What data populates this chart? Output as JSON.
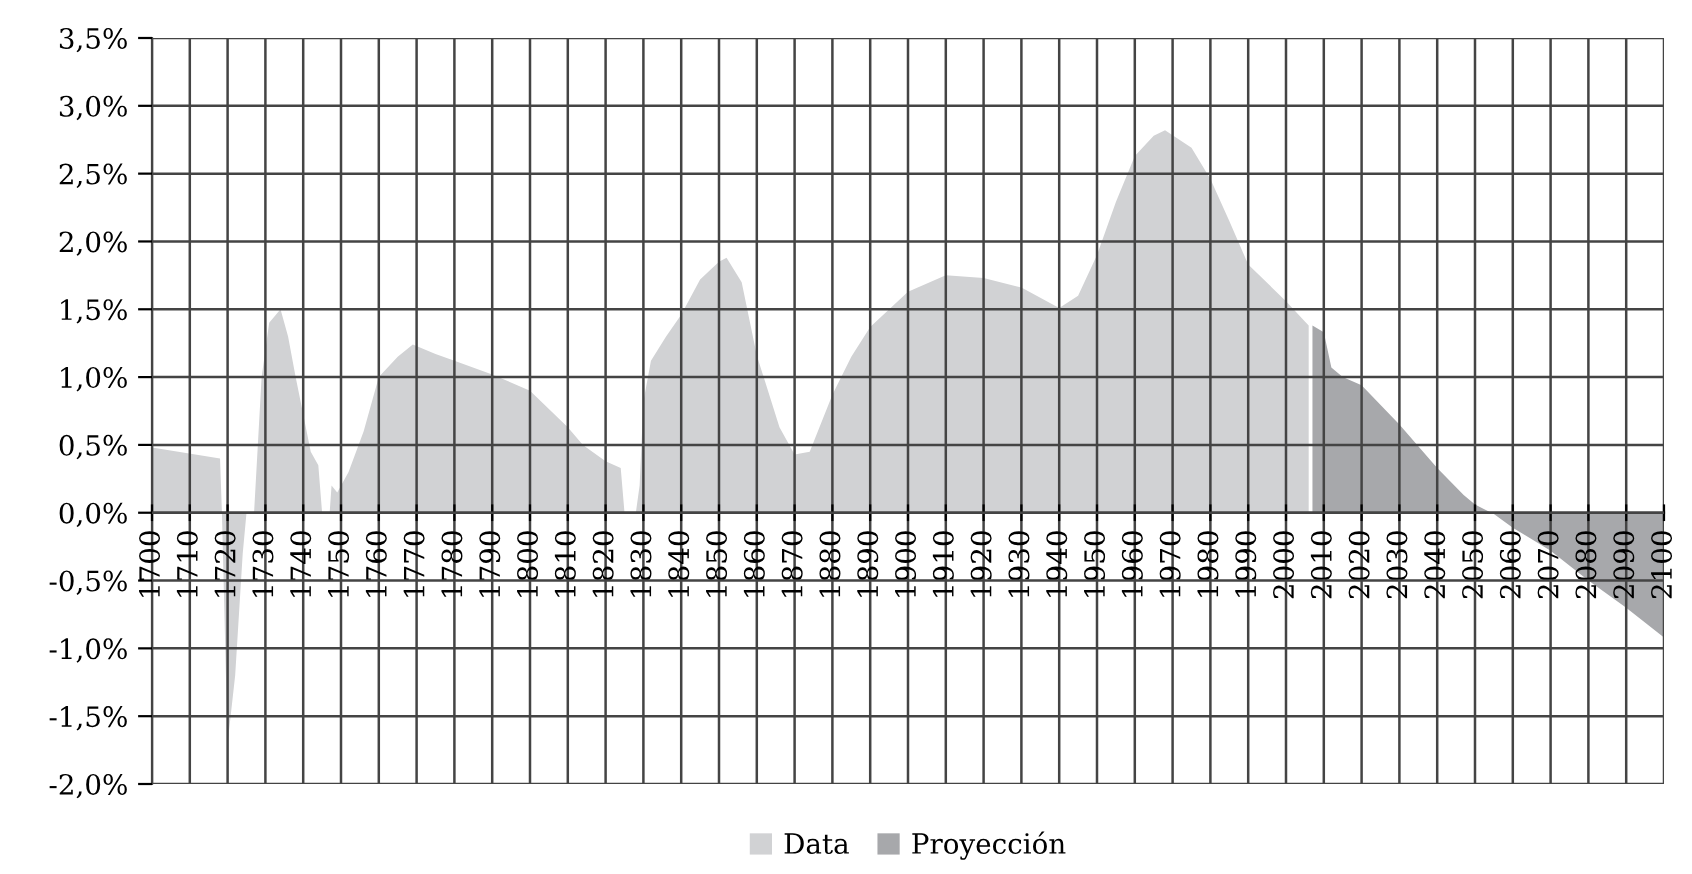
{
  "chart_data": {
    "type": "area",
    "xlim": [
      1700,
      2100
    ],
    "xticks": [
      1700,
      1710,
      1720,
      1730,
      1740,
      1750,
      1760,
      1770,
      1780,
      1790,
      1800,
      1810,
      1820,
      1830,
      1840,
      1850,
      1860,
      1870,
      1880,
      1890,
      1900,
      1910,
      1920,
      1930,
      1940,
      1950,
      1960,
      1970,
      1980,
      1990,
      2000,
      2010,
      2020,
      2030,
      2040,
      2050,
      2060,
      2070,
      2080,
      2090,
      2100
    ],
    "ylim": [
      -2.0,
      3.5
    ],
    "yticks": [
      {
        "value": -2.0,
        "label": "-2,0%"
      },
      {
        "value": -1.5,
        "label": "-1,5%"
      },
      {
        "value": -1.0,
        "label": "-1,0%"
      },
      {
        "value": -0.5,
        "label": "-0,5%"
      },
      {
        "value": 0,
        "label": "0,0%"
      },
      {
        "value": 0.5,
        "label": "0,5%"
      },
      {
        "value": 1.0,
        "label": "1,0%"
      },
      {
        "value": 1.5,
        "label": "1,5%"
      },
      {
        "value": 2.0,
        "label": "2,0%"
      },
      {
        "value": 2.5,
        "label": "2,5%"
      },
      {
        "value": 3.0,
        "label": "3,0%"
      },
      {
        "value": 3.5,
        "label": "3,5%"
      }
    ],
    "grid": true,
    "legend": "bottom",
    "series": [
      {
        "name": "Data",
        "color": "#d1d2d4",
        "x": [
          1700,
          1718,
          1718.5,
          1720,
          1722,
          1724,
          1725,
          1726,
          1727,
          1729,
          1731,
          1734,
          1736,
          1738,
          1742,
          1744,
          1745,
          1747,
          1747.5,
          1749,
          1752,
          1756,
          1760,
          1765,
          1769,
          1775,
          1780,
          1790,
          1800,
          1810,
          1814,
          1820,
          1824,
          1825,
          1828,
          1829,
          1830,
          1832,
          1836,
          1840,
          1845,
          1850,
          1852,
          1856,
          1860,
          1866,
          1870,
          1874,
          1880,
          1885,
          1890,
          1900,
          1910,
          1920,
          1930,
          1940,
          1945,
          1950,
          1955,
          1960,
          1965,
          1968,
          1975,
          1980,
          1985,
          1990,
          2000,
          2005,
          2006
        ],
        "values": [
          0.48,
          0.4,
          0,
          -1.7,
          -1.2,
          -0.3,
          0,
          0,
          0,
          1.0,
          1.4,
          1.5,
          1.3,
          1.0,
          0.45,
          0.35,
          0,
          0,
          0.2,
          0.15,
          0.3,
          0.6,
          1.0,
          1.15,
          1.24,
          1.17,
          1.12,
          1.02,
          0.9,
          0.63,
          0.5,
          0.38,
          0.33,
          0,
          0,
          0.2,
          0.82,
          1.12,
          1.3,
          1.46,
          1.72,
          1.85,
          1.88,
          1.7,
          1.16,
          0.63,
          0.43,
          0.45,
          0.87,
          1.15,
          1.37,
          1.63,
          1.75,
          1.73,
          1.66,
          1.51,
          1.6,
          1.9,
          2.29,
          2.63,
          2.78,
          2.82,
          2.69,
          2.46,
          2.15,
          1.83,
          1.56,
          1.41,
          1.38
        ]
      },
      {
        "name": "Proyección",
        "color": "#a7a8ab",
        "x": [
          2007,
          2010,
          2012,
          2015,
          2020,
          2030,
          2040,
          2047,
          2050,
          2055,
          2060,
          2070,
          2080,
          2090,
          2100
        ],
        "values": [
          1.38,
          1.33,
          1.07,
          1.0,
          0.94,
          0.65,
          0.33,
          0.13,
          0.06,
          -0.01,
          -0.11,
          -0.28,
          -0.5,
          -0.7,
          -0.92
        ]
      }
    ]
  }
}
